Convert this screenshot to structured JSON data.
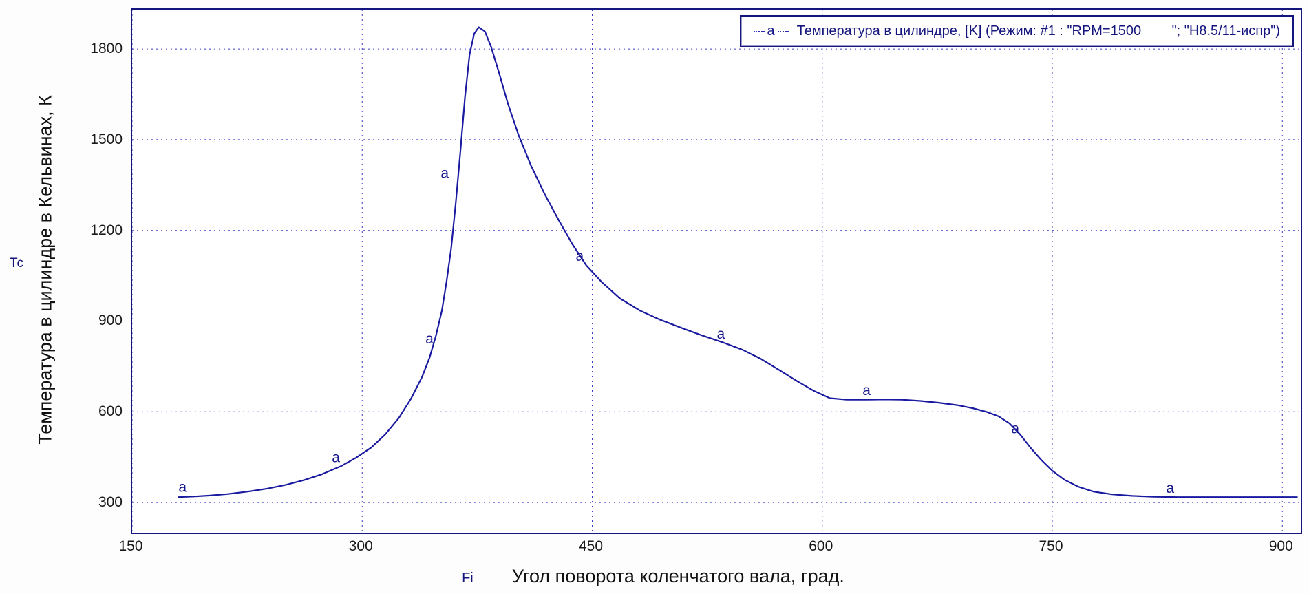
{
  "chart": {
    "legend": {
      "marker": "a",
      "label": "Температура в цилиндре, [K] (Режим: #1 : \"RPM=1500        \"; \"Н8.5/11-испр\")"
    },
    "y_axis": {
      "symbol": "Tc",
      "title": "Температура в цилиндре в Кельвинах, К"
    },
    "x_axis": {
      "symbol": "Fi",
      "title": "Угол поворота коленчатого вала, град."
    }
  },
  "chart_data": {
    "type": "line",
    "title": "",
    "xlabel": "Угол поворота коленчатого вала, град.",
    "ylabel": "Температура в цилиндре в Кельвинах, К",
    "x_ticks": [
      150,
      300,
      450,
      600,
      750,
      900
    ],
    "y_ticks": [
      300,
      600,
      900,
      1200,
      1500,
      1800
    ],
    "xlim": [
      150,
      912
    ],
    "ylim": [
      200,
      1930
    ],
    "grid": true,
    "legend_position": "top-right",
    "series": [
      {
        "name": "Температура в цилиндре, [K] (Режим: #1 : \"RPM=1500        \"; \"Н8.5/11-испр\")",
        "marker": "a",
        "x": [
          180,
          190,
          200,
          212,
          225,
          238,
          250,
          262,
          274,
          286,
          296,
          306,
          315,
          324,
          332,
          339,
          344,
          348,
          352,
          355,
          358,
          361,
          364,
          367,
          370,
          373,
          376,
          380,
          384,
          389,
          395,
          402,
          410,
          419,
          428,
          437,
          446,
          456,
          468,
          481,
          494,
          508,
          522,
          536,
          548,
          560,
          572,
          584,
          595,
          605,
          616,
          628,
          640,
          652,
          664,
          676,
          688,
          698,
          707,
          715,
          722,
          729,
          736,
          743,
          750,
          758,
          767,
          777,
          789,
          802,
          816,
          832,
          850,
          870,
          890,
          910
        ],
        "y": [
          318,
          320,
          323,
          328,
          336,
          346,
          358,
          374,
          394,
          420,
          448,
          482,
          525,
          580,
          645,
          715,
          780,
          850,
          935,
          1030,
          1140,
          1290,
          1460,
          1640,
          1780,
          1850,
          1872,
          1858,
          1808,
          1725,
          1620,
          1515,
          1415,
          1320,
          1235,
          1155,
          1085,
          1030,
          975,
          935,
          905,
          878,
          852,
          828,
          805,
          775,
          738,
          700,
          668,
          645,
          640,
          640,
          641,
          640,
          636,
          630,
          622,
          612,
          600,
          585,
          562,
          525,
          480,
          440,
          405,
          375,
          352,
          336,
          327,
          322,
          319,
          318,
          318,
          318,
          318,
          318
        ]
      }
    ],
    "marker_points": [
      [
        186,
        322
      ],
      [
        286,
        420
      ],
      [
        347,
        812
      ],
      [
        357,
        1360
      ],
      [
        445,
        1085
      ],
      [
        537,
        828
      ],
      [
        632,
        642
      ],
      [
        729,
        515
      ],
      [
        830,
        318
      ]
    ],
    "colors": {
      "line": "#1a1aa0",
      "grid": "#3c3cc8",
      "frame": "#15157e",
      "marker_text": "#14148c",
      "tick_text": "#1a1a1a"
    }
  }
}
